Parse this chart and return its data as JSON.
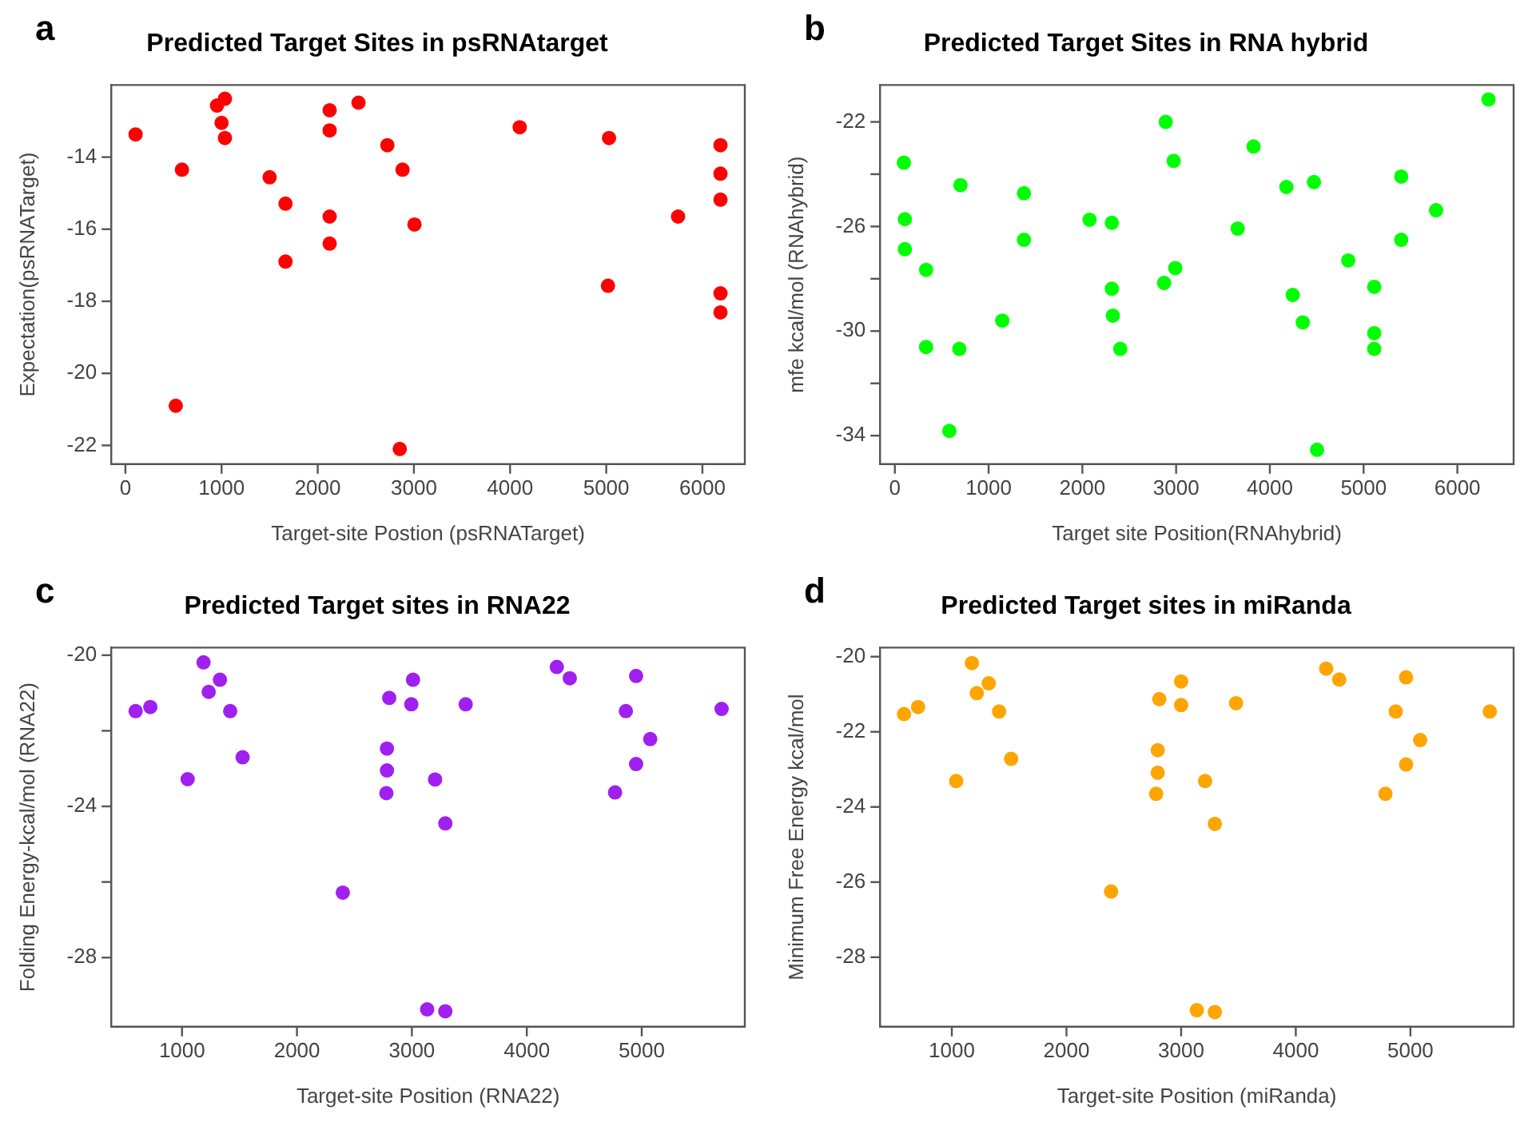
{
  "chart_data": [
    {
      "type": "scatter",
      "title": "Predicted Target Sites in psRNAtarget",
      "xlabel": "Target-site Postion (psRNATarget)",
      "ylabel": "Expectation(psRNATarget)",
      "annotations": [
        "a"
      ],
      "marker": "circle",
      "x": [
        106,
        588,
        524,
        953,
        1035,
        1000,
        1035,
        1500,
        1665,
        1665,
        2124,
        2124,
        2124,
        2124,
        2424,
        2724,
        2882,
        3006,
        2853,
        4100,
        5029,
        5018,
        5747,
        6188,
        6188,
        6188,
        6188,
        6188
      ],
      "series": [
        {
          "color": "#ff0000",
          "values": [
            -13.37,
            -14.35,
            -20.9,
            -12.57,
            -12.38,
            -13.05,
            -13.47,
            -14.56,
            -15.29,
            -16.9,
            -12.7,
            -13.26,
            -15.65,
            -16.4,
            -12.49,
            -13.67,
            -14.35,
            -15.87,
            -22.1,
            -13.17,
            -13.47,
            -17.57,
            -15.65,
            -13.67,
            -14.46,
            -15.18,
            -17.78,
            -18.31
          ]
        }
      ],
      "xlim": [
        -147,
        6441
      ],
      "ylim": [
        -22.52,
        -12
      ],
      "xticks": [
        0,
        1000,
        2000,
        3000,
        4000,
        5000,
        6000
      ],
      "yticks": [
        -14,
        -16,
        -18,
        -20,
        -22
      ]
    },
    {
      "type": "scatter",
      "title": "Predicted Target Sites in RNA hybrid",
      "xlabel": "Target site Position(RNAhybrid)",
      "ylabel": "mfe kcal/mol (RNAhybrid)",
      "annotations": [
        "b"
      ],
      "marker": "circle",
      "x": [
        96,
        107,
        107,
        333,
        333,
        581,
        700,
        688,
        1146,
        1377,
        1377,
        2077,
        2314,
        2314,
        2325,
        2404,
        2889,
        2974,
        2872,
        2991,
        3657,
        3826,
        4176,
        4244,
        4351,
        4470,
        4503,
        4836,
        5113,
        5113,
        5113,
        5401,
        5401,
        5773,
        6332
      ],
      "series": [
        {
          "color": "#00ff00",
          "values": [
            -23.56,
            -25.72,
            -26.87,
            -27.66,
            -30.61,
            -33.82,
            -24.42,
            -30.68,
            -29.6,
            -24.73,
            -26.51,
            -25.74,
            -25.86,
            -28.38,
            -29.41,
            -30.68,
            -22.0,
            -23.49,
            -28.16,
            -27.59,
            -26.08,
            -22.94,
            -24.49,
            -28.62,
            -29.67,
            -24.3,
            -34.54,
            -27.3,
            -28.31,
            -30.08,
            -30.68,
            -24.09,
            -26.51,
            -25.38,
            -21.14
          ]
        }
      ],
      "xlim": [
        -158,
        6600
      ],
      "ylim": [
        -35.09,
        -20.59
      ],
      "xticks": [
        0,
        1000,
        2000,
        3000,
        4000,
        5000,
        6000
      ],
      "yticks": [
        -22,
        {
          "value": -24,
          "label": null
        },
        -26,
        {
          "value": -28,
          "label": null
        },
        -30,
        {
          "value": -32,
          "label": null
        },
        -34
      ]
    },
    {
      "type": "scatter",
      "title": "Predicted Target sites in RNA22",
      "xlabel": "Target-site Position (RNA22)",
      "ylabel": "Folding Energy-kcal/mol (RNA22)",
      "annotations": [
        "c"
      ],
      "marker": "circle",
      "x": [
        596,
        724,
        1049,
        1187,
        1232,
        1330,
        1419,
        1527,
        2399,
        2783,
        2783,
        2778,
        2803,
        2995,
        3010,
        3133,
        3291,
        3202,
        3291,
        3468,
        4261,
        4374,
        4768,
        4862,
        4951,
        4951,
        5074,
        5695
      ],
      "series": [
        {
          "color": "#a020f0",
          "values": [
            -21.48,
            -21.37,
            -23.28,
            -20.19,
            -20.97,
            -20.65,
            -21.48,
            -22.7,
            -26.28,
            -22.47,
            -23.05,
            -23.65,
            -21.13,
            -21.3,
            -20.65,
            -29.37,
            -29.42,
            -23.29,
            -24.45,
            -21.3,
            -20.31,
            -20.61,
            -23.63,
            -21.48,
            -20.55,
            -22.88,
            -22.22,
            -21.42
          ]
        }
      ],
      "xlim": [
        384,
        5897
      ],
      "ylim": [
        -29.83,
        -19.8
      ],
      "xticks": [
        1000,
        2000,
        3000,
        4000,
        5000
      ],
      "yticks": [
        -20,
        {
          "value": -22,
          "label": null
        },
        -24,
        {
          "value": -26,
          "label": null
        },
        -28
      ]
    },
    {
      "type": "scatter",
      "title": "Predicted Target sites in miRanda",
      "xlabel": "Target-site Position (miRanda)",
      "ylabel": "Minimum Free Energy kcal/mol",
      "annotations": [
        "d"
      ],
      "marker": "circle",
      "x": [
        583,
        706,
        1038,
        1175,
        1218,
        1322,
        1412,
        1517,
        2389,
        2796,
        2796,
        2782,
        2810,
        3000,
        3000,
        3137,
        3294,
        3209,
        3294,
        3479,
        4265,
        4379,
        4782,
        4872,
        4962,
        4962,
        5085,
        5692
      ],
      "series": [
        {
          "color": "#ffa500",
          "values": [
            -21.53,
            -21.34,
            -23.31,
            -20.17,
            -20.97,
            -20.71,
            -21.46,
            -22.72,
            -26.25,
            -22.49,
            -23.09,
            -23.65,
            -21.13,
            -21.29,
            -20.66,
            -29.41,
            -29.46,
            -23.31,
            -24.45,
            -21.24,
            -20.32,
            -20.61,
            -23.65,
            -21.46,
            -20.55,
            -22.87,
            -22.22,
            -21.46
          ]
        }
      ],
      "xlim": [
        374,
        5900
      ],
      "ylim": [
        -29.85,
        -19.76
      ],
      "xticks": [
        1000,
        2000,
        3000,
        4000,
        5000
      ],
      "yticks": [
        -20,
        -22,
        -24,
        -26,
        -28
      ]
    }
  ]
}
